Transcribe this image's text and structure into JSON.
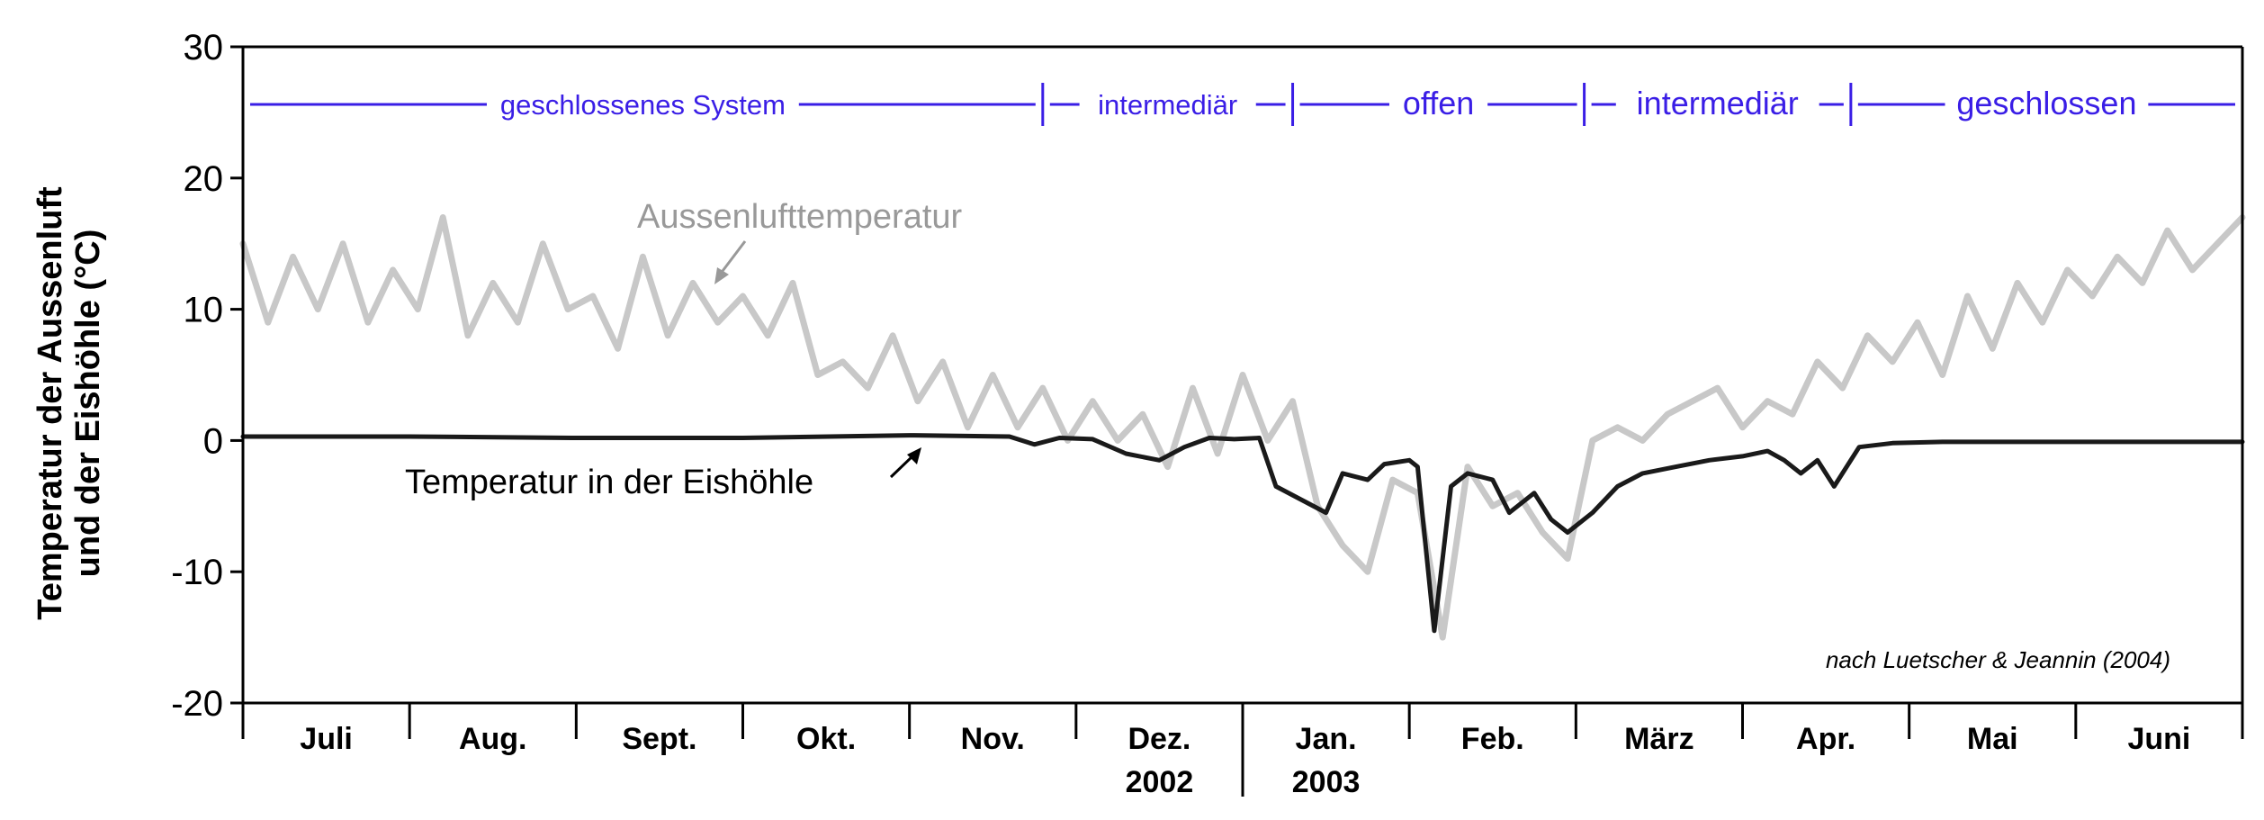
{
  "chart_data": {
    "type": "line",
    "ylabel_lines": [
      "Temperatur der Aussenluft",
      "und der Eishöhle (°C)"
    ],
    "ylim": [
      -20,
      30
    ],
    "yticks": [
      30,
      20,
      10,
      0,
      -10,
      -20
    ],
    "grid": false,
    "months": [
      "Juli",
      "Aug.",
      "Sept.",
      "Okt.",
      "Nov.",
      "Dez.",
      "Jan.",
      "Feb.",
      "März",
      "Apr.",
      "Mai",
      "Juni"
    ],
    "year_labels": [
      {
        "month_index": 5,
        "text": "2002"
      },
      {
        "month_index": 6,
        "text": "2003"
      }
    ],
    "phases": [
      {
        "label": "geschlossenes System",
        "from": 0,
        "to": 4.8
      },
      {
        "label": "intermediär",
        "from": 4.8,
        "to": 6.3
      },
      {
        "label": "offen",
        "from": 6.3,
        "to": 8.05
      },
      {
        "label": "intermediär",
        "from": 8.05,
        "to": 9.65
      },
      {
        "label": "geschlossen",
        "from": 9.65,
        "to": 12
      }
    ],
    "series": [
      {
        "name": "Aussenlufttemperatur",
        "color": "#c8c8c8",
        "x": [
          0,
          0.15,
          0.3,
          0.45,
          0.6,
          0.75,
          0.9,
          1.05,
          1.2,
          1.35,
          1.5,
          1.65,
          1.8,
          1.95,
          2.1,
          2.25,
          2.4,
          2.55,
          2.7,
          2.85,
          3.0,
          3.15,
          3.3,
          3.45,
          3.6,
          3.75,
          3.9,
          4.05,
          4.2,
          4.35,
          4.5,
          4.65,
          4.8,
          4.95,
          5.1,
          5.25,
          5.4,
          5.55,
          5.7,
          5.85,
          6.0,
          6.15,
          6.3,
          6.45,
          6.6,
          6.75,
          6.9,
          7.05,
          7.2,
          7.35,
          7.5,
          7.65,
          7.8,
          7.95,
          8.1,
          8.25,
          8.4,
          8.55,
          8.85,
          9.0,
          9.15,
          9.3,
          9.45,
          9.6,
          9.75,
          9.9,
          10.05,
          10.2,
          10.35,
          10.5,
          10.65,
          10.8,
          10.95,
          11.1,
          11.25,
          11.4,
          11.55,
          11.7,
          11.85,
          12.0
        ],
        "values": [
          15,
          9,
          14,
          10,
          15,
          9,
          13,
          10,
          17,
          8,
          12,
          9,
          15,
          10,
          11,
          7,
          14,
          8,
          12,
          9,
          11,
          8,
          12,
          5,
          6,
          4,
          8,
          3,
          6,
          1,
          5,
          1,
          4,
          0,
          3,
          0,
          2,
          -2,
          4,
          -1,
          5,
          0,
          3,
          -5,
          -8,
          -10,
          -3,
          -4,
          -15,
          -2,
          -5,
          -4,
          -7,
          -9,
          0,
          1,
          0,
          2,
          4,
          1,
          3,
          2,
          6,
          4,
          8,
          6,
          9,
          5,
          11,
          7,
          12,
          9,
          13,
          11,
          14,
          12,
          16,
          13,
          15,
          17
        ]
      },
      {
        "name": "Temperatur in der Eishöhle",
        "color": "#1a1a1a",
        "x": [
          0,
          1.0,
          2.0,
          3.0,
          4.0,
          4.6,
          4.75,
          4.9,
          5.1,
          5.3,
          5.5,
          5.65,
          5.8,
          5.95,
          6.1,
          6.2,
          6.35,
          6.5,
          6.6,
          6.75,
          6.85,
          7.0,
          7.05,
          7.15,
          7.25,
          7.35,
          7.5,
          7.6,
          7.75,
          7.85,
          7.95,
          8.1,
          8.25,
          8.4,
          8.6,
          8.8,
          9.0,
          9.15,
          9.25,
          9.35,
          9.45,
          9.55,
          9.7,
          9.9,
          10.2,
          10.5,
          11.0,
          11.5,
          12.0
        ],
        "values": [
          0.3,
          0.3,
          0.2,
          0.2,
          0.4,
          0.3,
          -0.3,
          0.2,
          0.1,
          -1.0,
          -1.5,
          -0.5,
          0.2,
          0.1,
          0.2,
          -3.5,
          -4.5,
          -5.5,
          -2.5,
          -3.0,
          -1.8,
          -1.5,
          -2.0,
          -14.5,
          -3.5,
          -2.5,
          -3.0,
          -5.5,
          -4.0,
          -6.0,
          -7.0,
          -5.5,
          -3.5,
          -2.5,
          -2.0,
          -1.5,
          -1.2,
          -0.8,
          -1.5,
          -2.5,
          -1.5,
          -3.5,
          -0.5,
          -0.2,
          -0.1,
          -0.1,
          -0.1,
          -0.1,
          -0.1
        ]
      }
    ],
    "annotations": {
      "outer_label": "Aussenlufttemperatur",
      "inner_label": "Temperatur in der Eishöhle",
      "source": "nach Luetscher & Jeannin (2004)"
    }
  }
}
